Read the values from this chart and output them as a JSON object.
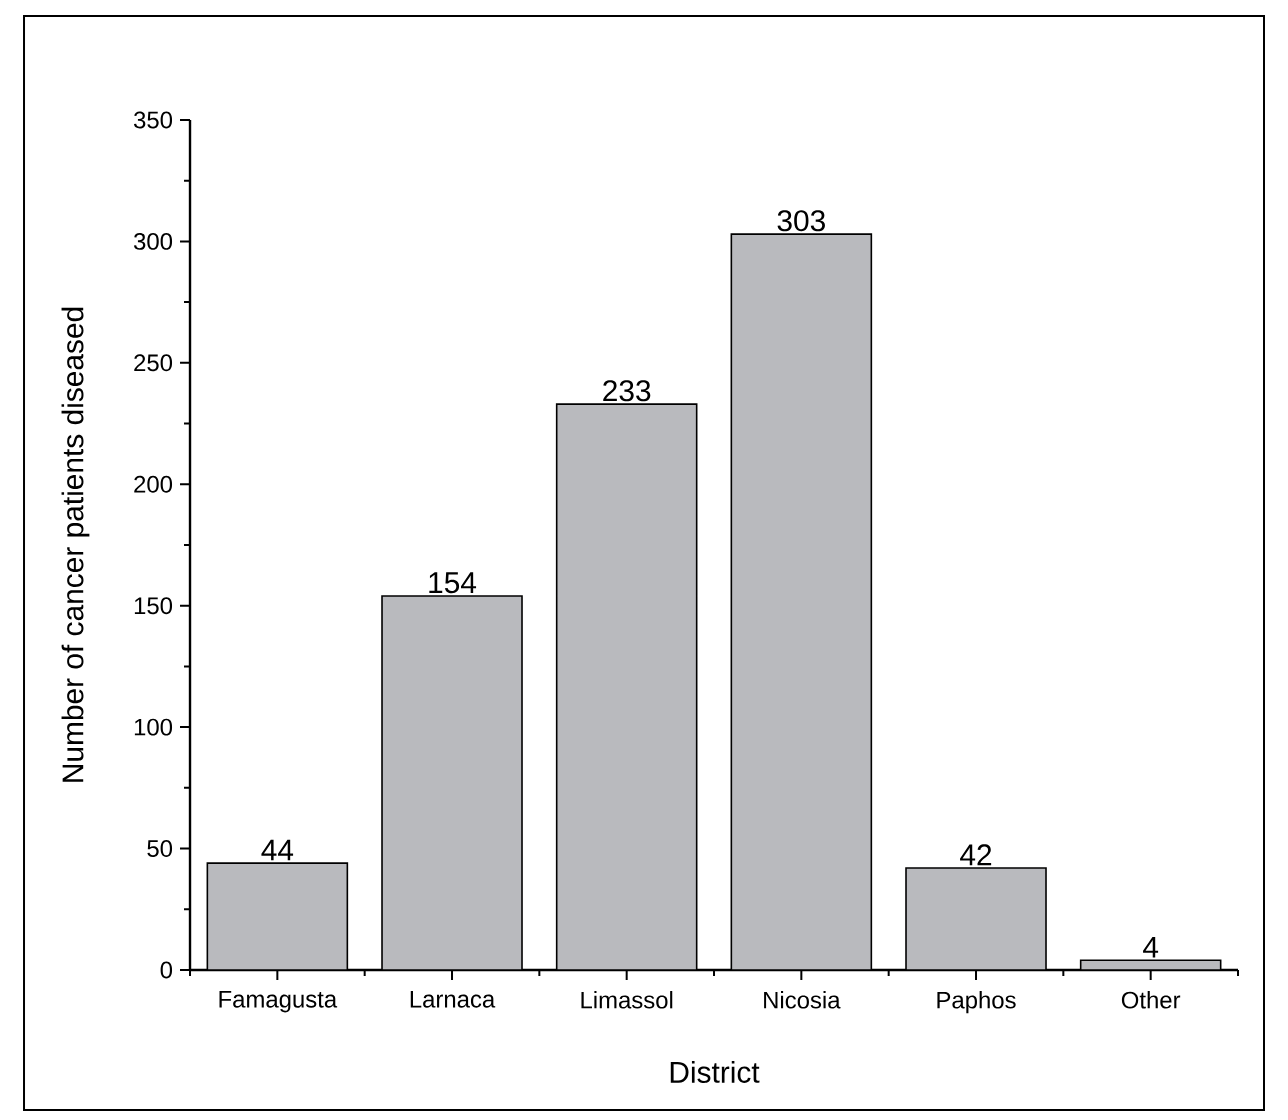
{
  "chart_data": {
    "type": "bar",
    "xlabel": "District",
    "ylabel": "Number of cancer patients diseased",
    "categories": [
      "Famagusta",
      "Larnaca",
      "Limassol",
      "Nicosia",
      "Paphos",
      "Other"
    ],
    "values": [
      44,
      154,
      233,
      303,
      42,
      4
    ],
    "color": "#b9babe",
    "ylim": [
      0,
      350
    ],
    "yticks": [
      0,
      50,
      100,
      150,
      200,
      250,
      300,
      350
    ],
    "data_labels": true,
    "grid": false
  }
}
